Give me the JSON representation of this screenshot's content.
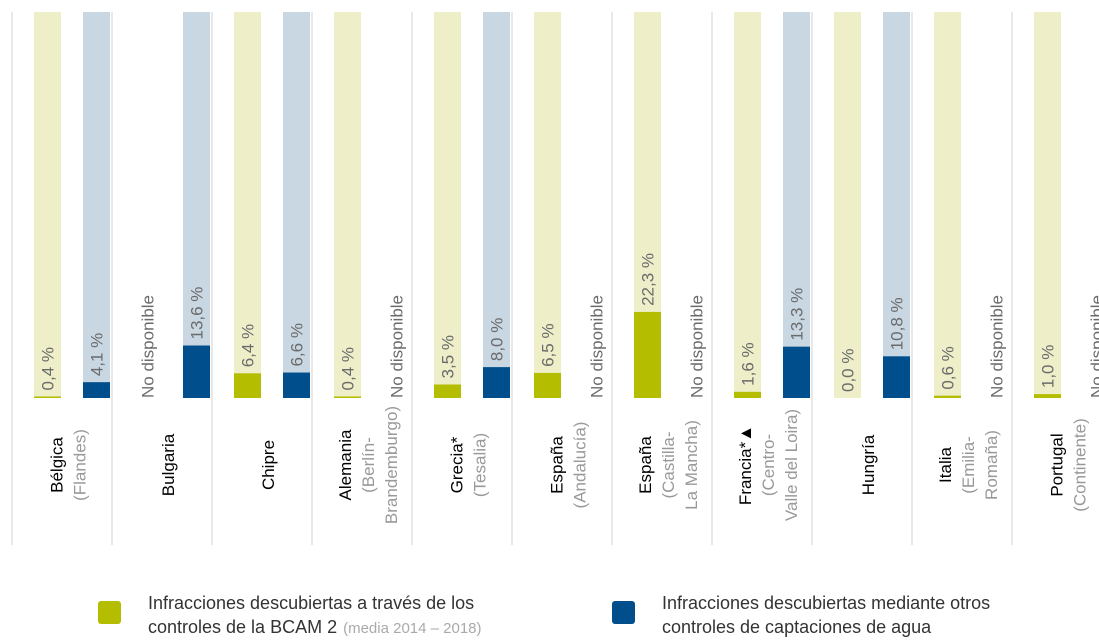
{
  "chart_data": {
    "type": "bar",
    "categories": [
      "Bélgica",
      "Bulgaria",
      "Chipre",
      "Alemania",
      "Grecia*",
      "España",
      "España",
      "Francia*▲",
      "Hungría",
      "Italia",
      "Portugal"
    ],
    "subcategories": [
      [
        "(Flandes)"
      ],
      null,
      null,
      [
        "(Berlín-",
        "Brandemburgo)"
      ],
      [
        "(Tesalia)"
      ],
      [
        "(Andalucía)"
      ],
      [
        "(Castilla-",
        "La Mancha)"
      ],
      [
        "(Centro-",
        "Valle del Loira)"
      ],
      null,
      [
        "(Emilia-",
        "Romaña)"
      ],
      [
        "(Continente)"
      ]
    ],
    "ylim": [
      0,
      100
    ],
    "series": [
      {
        "name": "Infracciones descubiertas a través de los controles de la BCAM 2",
        "note": "(media 2014 – 2018)",
        "color": "#b5bd00",
        "background": "#eeefc9",
        "values": [
          0.4,
          null,
          6.4,
          0.4,
          3.5,
          6.5,
          22.3,
          1.6,
          0.0,
          0.6,
          1.0
        ],
        "value_labels": [
          "0,4 %",
          "No disponible",
          "6,4 %",
          "0,4 %",
          "3,5 %",
          "6,5 %",
          "22,3 %",
          "1,6 %",
          "0,0 %",
          "0,6 %",
          "1,0 %"
        ]
      },
      {
        "name": "Infracciones descubiertas mediante otros controles de captaciones de agua",
        "color": "#004f8c",
        "background": "#c9d7e3",
        "values": [
          4.1,
          13.6,
          6.6,
          null,
          8.0,
          null,
          null,
          13.3,
          10.8,
          null,
          null
        ],
        "value_labels": [
          "4,1 %",
          "13,6 %",
          "6,6 %",
          "No disponible",
          "8,0 %",
          "No disponible",
          "No disponible",
          "13,3 %",
          "10,8 %",
          "No disponible",
          "No disponible"
        ]
      }
    ]
  }
}
